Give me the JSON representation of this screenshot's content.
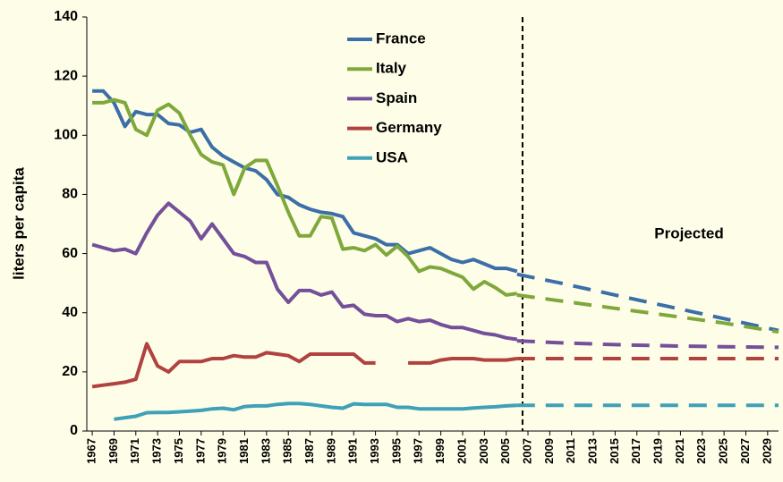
{
  "chart_data": {
    "type": "line",
    "ylabel": "liters per capita",
    "annotation": "Projected",
    "x": [
      1967,
      1968,
      1969,
      1970,
      1971,
      1972,
      1973,
      1974,
      1975,
      1976,
      1977,
      1978,
      1979,
      1980,
      1981,
      1982,
      1983,
      1984,
      1985,
      1986,
      1987,
      1988,
      1989,
      1990,
      1991,
      1992,
      1993,
      1994,
      1995,
      1996,
      1997,
      1998,
      1999,
      2000,
      2001,
      2002,
      2003,
      2004,
      2005,
      2006
    ],
    "projection_x": [
      2006,
      2010,
      2015,
      2020,
      2025,
      2030
    ],
    "divider_x": 2006.5,
    "xlim": [
      1966.5,
      2030
    ],
    "xticks": [
      1967,
      1969,
      1971,
      1973,
      1975,
      1977,
      1979,
      1981,
      1983,
      1985,
      1987,
      1989,
      1991,
      1993,
      1995,
      1997,
      1999,
      2001,
      2003,
      2005,
      2007,
      2009,
      2011,
      2013,
      2015,
      2017,
      2019,
      2021,
      2023,
      2025,
      2027,
      2029
    ],
    "ylim": [
      0,
      140
    ],
    "yticks": [
      0,
      20,
      40,
      60,
      80,
      100,
      120,
      140
    ],
    "grid": false,
    "series": [
      {
        "name": "France",
        "color": "#3c6ea8",
        "values": [
          115,
          115,
          111,
          103,
          108,
          107,
          107,
          104,
          103.5,
          101,
          102,
          96,
          93,
          91,
          89,
          88,
          85,
          80,
          79,
          76.5,
          75,
          74,
          73.5,
          72.5,
          67,
          66,
          65,
          63,
          63,
          60,
          61,
          62,
          60,
          58,
          57,
          58,
          56.5,
          55,
          55,
          54
        ],
        "projection": [
          53,
          50,
          46,
          42,
          38,
          34
        ]
      },
      {
        "name": "Italy",
        "color": "#7fa83c",
        "values": [
          111,
          111,
          112,
          111,
          102,
          100,
          108.5,
          110.5,
          107.5,
          100,
          93.5,
          91,
          90,
          80,
          89,
          91.5,
          91.5,
          83,
          74,
          66,
          66,
          72.5,
          72,
          61.5,
          62,
          61,
          63,
          59.5,
          62.5,
          59,
          54,
          55.5,
          55,
          53.5,
          52,
          48,
          50.5,
          48.5,
          46,
          46.5
        ],
        "projection": [
          46,
          44,
          41.5,
          39,
          36.5,
          33.5
        ]
      },
      {
        "name": "Spain",
        "color": "#74509a",
        "values": [
          63,
          62,
          61,
          61.5,
          60,
          67,
          73,
          77,
          74,
          71,
          65,
          70,
          65,
          60,
          59,
          57,
          57,
          48,
          43.5,
          47.5,
          47.5,
          46,
          47,
          42,
          42.5,
          39.5,
          39,
          39,
          37,
          38,
          37,
          37.5,
          36,
          35,
          35,
          34,
          33,
          32.5,
          31.5,
          31
        ],
        "projection": [
          30.5,
          29.8,
          29.2,
          28.8,
          28.5,
          28.3
        ]
      },
      {
        "name": "Germany",
        "color": "#b0423f",
        "values": [
          15,
          15.5,
          16,
          16.5,
          17.5,
          29.5,
          22,
          20,
          23.5,
          23.5,
          23.5,
          24.5,
          24.5,
          25.5,
          25,
          25,
          26.5,
          26,
          25.5,
          23.5,
          26,
          26,
          26,
          26,
          26,
          23,
          23,
          null,
          null,
          23,
          23,
          23,
          24,
          24.5,
          24.5,
          24.5,
          24,
          24,
          24,
          24.5
        ],
        "projection": [
          24.5,
          24.5,
          24.5,
          24.5,
          24.5,
          24.5
        ]
      },
      {
        "name": "USA",
        "color": "#3fa0b8",
        "values": [
          null,
          null,
          4,
          4.5,
          5,
          6.2,
          6.3,
          6.3,
          6.5,
          6.7,
          7,
          7.5,
          7.7,
          7.2,
          8.3,
          8.5,
          8.5,
          9,
          9.3,
          9.3,
          9,
          8.5,
          8,
          7.7,
          9.2,
          9,
          9,
          9,
          8,
          8,
          7.5,
          7.5,
          7.5,
          7.5,
          7.5,
          7.8,
          8,
          8.2,
          8.5,
          8.7
        ],
        "projection": [
          8.7,
          8.7,
          8.7,
          8.7,
          8.7,
          8.7
        ]
      }
    ]
  }
}
